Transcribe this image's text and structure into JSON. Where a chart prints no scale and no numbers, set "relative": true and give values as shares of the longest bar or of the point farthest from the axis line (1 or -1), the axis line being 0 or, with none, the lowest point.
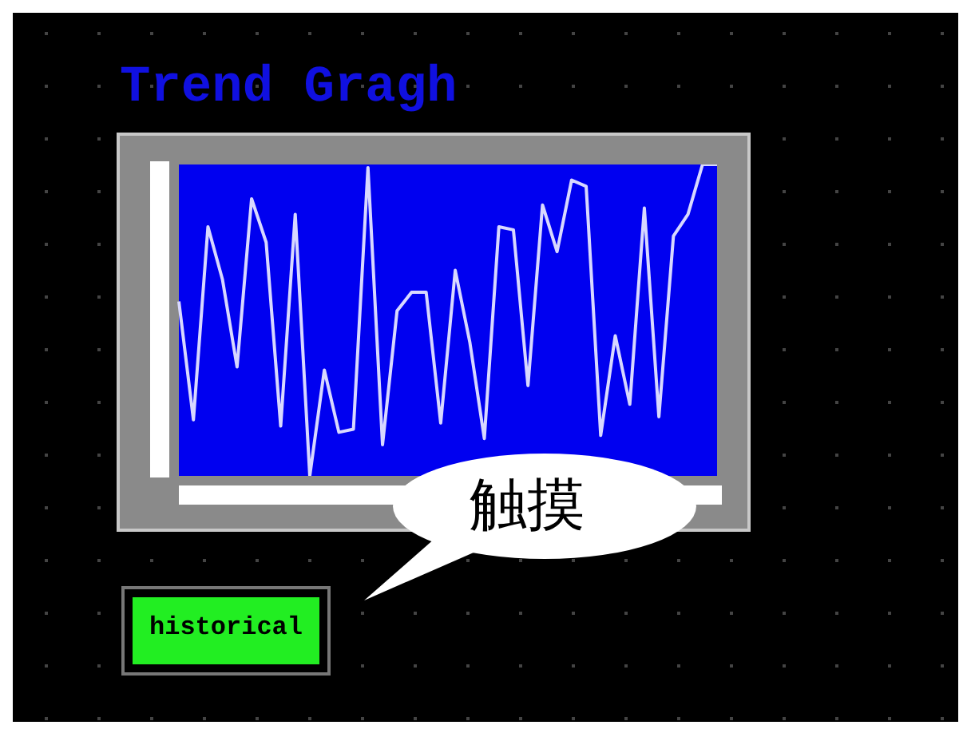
{
  "chart_data": {
    "type": "line",
    "title": "Trend Gragh",
    "relative": true,
    "legend": false,
    "grid": false,
    "marker": "none",
    "categories": [
      null,
      null,
      null,
      null,
      null,
      null,
      null,
      null,
      null,
      null,
      null,
      null,
      null,
      null,
      null,
      null,
      null,
      null,
      null,
      null,
      null,
      null,
      null,
      null,
      null,
      null,
      null,
      null,
      null,
      null,
      null,
      null,
      null,
      null,
      null,
      null,
      null,
      null
    ],
    "series": [
      {
        "color": "#d8d8ff",
        "values": [
          0.56,
          0.18,
          0.8,
          0.63,
          0.35,
          0.89,
          0.75,
          0.16,
          0.84,
          0,
          0.34,
          0.14,
          0.15,
          0.99,
          0.1,
          0.53,
          0.59,
          0.59,
          0.17,
          0.66,
          0.43,
          0.12,
          0.8,
          0.79,
          0.29,
          0.87,
          0.72,
          0.95,
          0.93,
          0.13,
          0.45,
          0.23,
          0.86,
          0.19,
          0.77,
          0.84,
          1,
          1
        ]
      }
    ],
    "annotations": [
      "触摸",
      "historical"
    ]
  }
}
